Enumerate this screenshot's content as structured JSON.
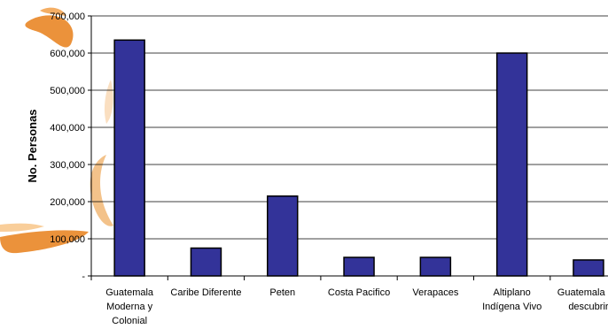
{
  "chart_data": {
    "type": "bar",
    "ylabel": "No. Personas",
    "ylim": [
      0,
      700000
    ],
    "yticks": [
      {
        "value": 0,
        "label": "-"
      },
      {
        "value": 100000,
        "label": "100,000"
      },
      {
        "value": 200000,
        "label": "200,000"
      },
      {
        "value": 300000,
        "label": "300,000"
      },
      {
        "value": 400000,
        "label": "400,000"
      },
      {
        "value": 500000,
        "label": "500,000"
      },
      {
        "value": 600000,
        "label": "600,000"
      },
      {
        "value": 700000,
        "label": "700,000"
      }
    ],
    "grid": "horizontal",
    "bar_color": "#333399",
    "categories": [
      [
        "Guatemala",
        "Moderna y",
        "Colonial"
      ],
      [
        "Caribe Diferente"
      ],
      [
        "Peten"
      ],
      [
        "Costa Pacifico"
      ],
      [
        "Verapaces"
      ],
      [
        "Altiplano",
        "Indígena Vivo"
      ],
      [
        "Guatemala Po",
        "descubrir"
      ]
    ],
    "values": [
      635000,
      75000,
      215000,
      50000,
      50000,
      600000,
      43000
    ]
  },
  "decoration": {
    "icon": "orange-brushstroke-watermark",
    "color": "#e8801a"
  }
}
